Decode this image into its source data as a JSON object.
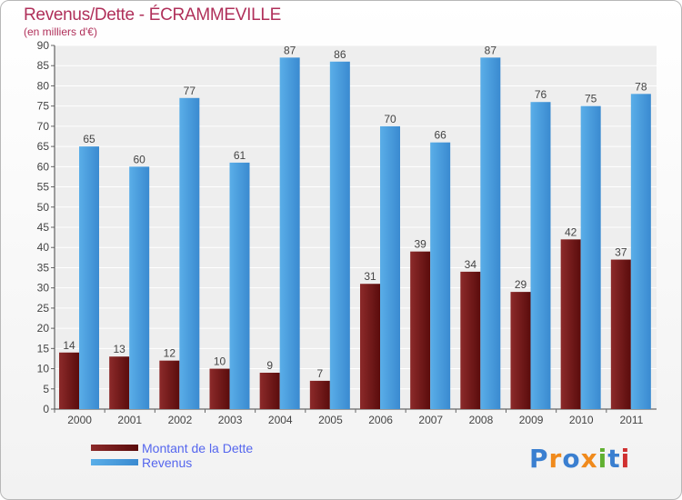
{
  "chart_data": {
    "type": "bar",
    "title": "Revenus/Dette - ÉCRAMMEVILLE",
    "subtitle": "(en milliers d'€)",
    "categories": [
      "2000",
      "2001",
      "2002",
      "2003",
      "2004",
      "2005",
      "2006",
      "2007",
      "2008",
      "2009",
      "2010",
      "2011"
    ],
    "series": [
      {
        "name": "Montant de la Dette",
        "color": "#7a1a1a",
        "values": [
          14,
          13,
          12,
          10,
          9,
          7,
          31,
          39,
          34,
          29,
          42,
          37
        ]
      },
      {
        "name": "Revenus",
        "color": "#4a9ee0",
        "values": [
          65,
          60,
          77,
          61,
          87,
          86,
          70,
          66,
          87,
          76,
          75,
          78
        ]
      }
    ],
    "ylim": [
      0,
      90
    ],
    "yticks": [
      0,
      5,
      10,
      15,
      20,
      25,
      30,
      35,
      40,
      45,
      50,
      55,
      60,
      65,
      70,
      75,
      80,
      85,
      90
    ],
    "grid": true,
    "legend_position": "bottom-left"
  },
  "logo": {
    "text": "Proxiti",
    "colors": [
      "#3a7fd0",
      "#f08a1c",
      "#3a7fd0",
      "#f08a1c",
      "#60b030",
      "#3a7fd0",
      "#d03030"
    ]
  }
}
